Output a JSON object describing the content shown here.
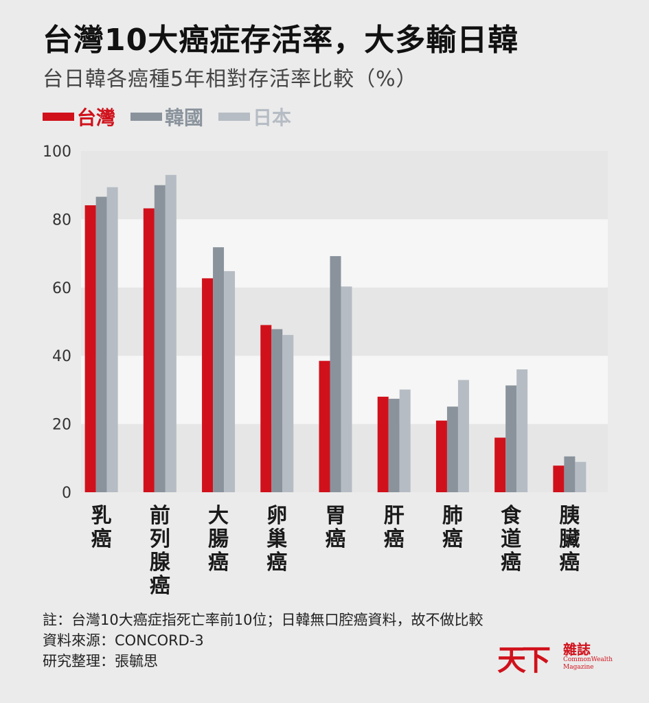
{
  "header": {
    "title": "台灣10大癌症存活率，大多輸日韓",
    "subtitle": "台日韓各癌種5年相對存活率比較（%）"
  },
  "chart_data": {
    "type": "bar",
    "categories": [
      "乳癌",
      "前列腺癌",
      "大腸癌",
      "卵巢癌",
      "胃癌",
      "肝癌",
      "肺癌",
      "食道癌",
      "胰臟癌"
    ],
    "series": [
      {
        "name": "台灣",
        "color": "#d0111b",
        "values": [
          84.1,
          83.2,
          62.7,
          49.0,
          38.5,
          28.0,
          21.0,
          16.0,
          7.8
        ]
      },
      {
        "name": "韓國",
        "color": "#8a939c",
        "values": [
          86.6,
          90.0,
          71.8,
          47.8,
          69.2,
          27.4,
          25.1,
          31.3,
          10.5
        ]
      },
      {
        "name": "日本",
        "color": "#b6bcc4",
        "values": [
          89.4,
          93.0,
          64.8,
          46.1,
          60.3,
          30.1,
          32.9,
          36.0,
          8.9
        ]
      }
    ],
    "yticks": [
      0,
      20,
      40,
      60,
      80,
      100
    ],
    "ylim": [
      0,
      100
    ],
    "grid": "alternating bands",
    "legend_position": "top-left"
  },
  "footer": {
    "note": "註：台灣10大癌症指死亡率前10位；日韓無口腔癌資料，故不做比較",
    "source": "資料來源：CONCORD-3",
    "compiled_by": "研究整理：張毓思"
  },
  "logo": {
    "main_text": "天下",
    "sub_text": "雜誌",
    "en_line1": "CommonWealth",
    "en_line2": "Magazine"
  }
}
